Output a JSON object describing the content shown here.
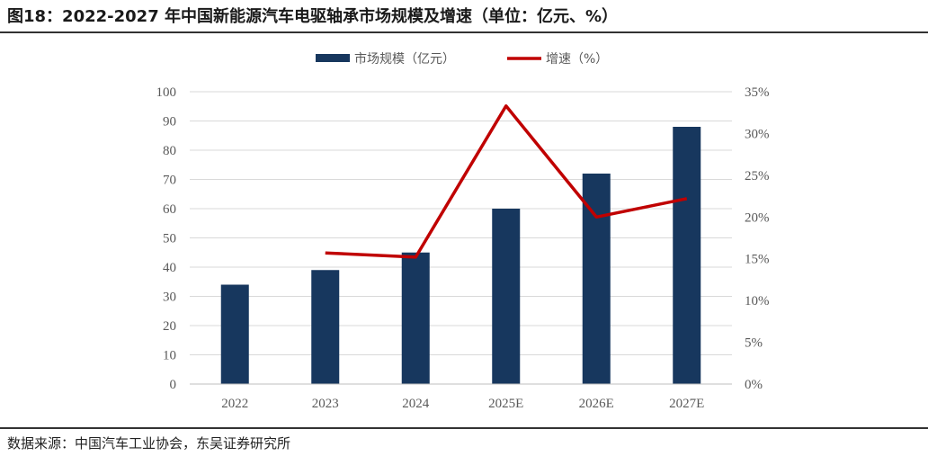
{
  "header": {
    "title": "图18：2022-2027 年中国新能源汽车电驱轴承市场规模及增速（单位：亿元、%）"
  },
  "footer": {
    "source": "数据来源：中国汽车工业协会，东吴证券研究所"
  },
  "chart_data": {
    "type": "bar",
    "categories": [
      "2022",
      "2023",
      "2024",
      "2025E",
      "2026E",
      "2027E"
    ],
    "series": [
      {
        "name": "市场规模（亿元）",
        "type": "bar",
        "axis": "left",
        "color": "#17375e",
        "values": [
          34,
          39,
          45,
          60,
          72,
          88
        ]
      },
      {
        "name": "增速（%）",
        "type": "line",
        "axis": "right",
        "color": "#c00000",
        "values": [
          null,
          15.7,
          15.2,
          33.3,
          20.0,
          22.2
        ]
      }
    ],
    "ylim_left": [
      0,
      100
    ],
    "yticks_left": [
      "0",
      "10",
      "20",
      "30",
      "40",
      "50",
      "60",
      "70",
      "80",
      "90",
      "100"
    ],
    "ylim_right": [
      0,
      35
    ],
    "yticks_right": [
      "0%",
      "5%",
      "10%",
      "15%",
      "20%",
      "25%",
      "30%",
      "35%"
    ],
    "grid": true,
    "legend": "top-center"
  }
}
